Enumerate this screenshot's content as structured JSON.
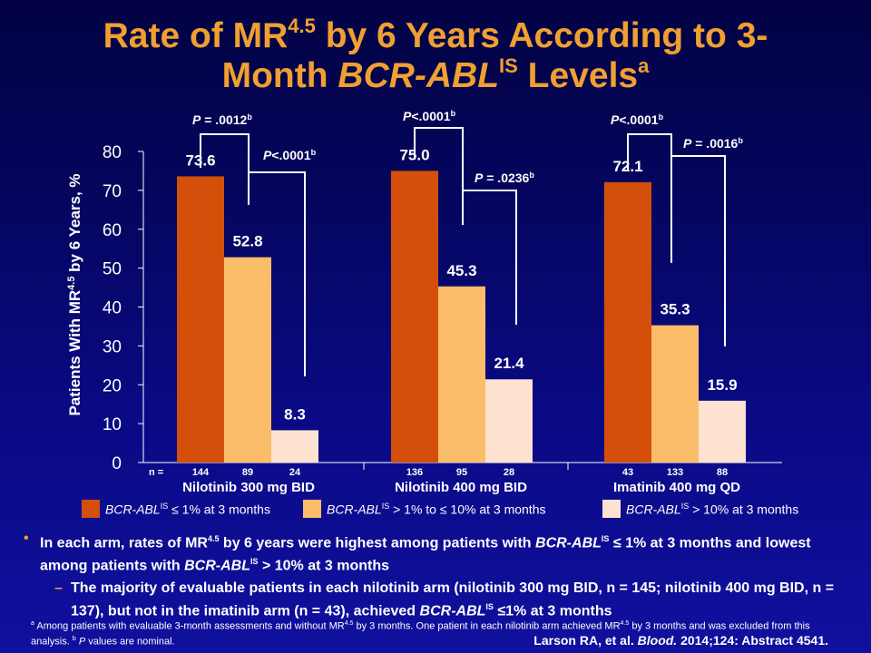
{
  "title": {
    "line1_a": "Rate of MR",
    "line1_sup": "4.5",
    "line1_b": " by 6 Years According to 3-",
    "line2_a": "Month ",
    "line2_italic": "BCR-ABL",
    "line2_sup": "IS",
    "line2_b": " Levels",
    "line2_sup2": "a"
  },
  "colors": {
    "accent": "#f0a030",
    "series_low": "#d4500a",
    "series_mid": "#fbbd6a",
    "series_high": "#fde2d2"
  },
  "chart_data": {
    "type": "bar",
    "ylabel": "Patients With MR4.5 by 6 Years, %",
    "ylabel_parts": {
      "pre": "Patients With MR",
      "sup": "4.5",
      "post": " by 6 Years, %"
    },
    "ylim": [
      0,
      80
    ],
    "yticks": [
      "0",
      "10",
      "20",
      "30",
      "40",
      "50",
      "60",
      "70",
      "80"
    ],
    "categories": [
      "Nilotinib 300 mg BID",
      "Nilotinib 400 mg BID",
      "Imatinib 400 mg QD"
    ],
    "series": [
      {
        "name": "BCR-ABL IS ≤ 1% at 3 months",
        "values": [
          73.6,
          75.0,
          72.1
        ],
        "labels": [
          "73.6",
          "75.0",
          "72.1"
        ],
        "n": [
          "144",
          "136",
          "43"
        ]
      },
      {
        "name": "BCR-ABL IS > 1% to ≤ 10% at 3 months",
        "values": [
          52.8,
          45.3,
          35.3
        ],
        "labels": [
          "52.8",
          "45.3",
          "35.3"
        ],
        "n": [
          "89",
          "95",
          "133"
        ]
      },
      {
        "name": "BCR-ABL IS > 10% at 3 months",
        "values": [
          8.3,
          21.4,
          15.9
        ],
        "labels": [
          "8.3",
          "21.4",
          "15.9"
        ],
        "n": [
          "24",
          "28",
          "88"
        ]
      }
    ],
    "n_label": "n =",
    "pvalues": [
      {
        "group": 0,
        "compare": "first",
        "text": "P = .0012",
        "sup": "b"
      },
      {
        "group": 0,
        "compare": "second",
        "text": "P<.0001",
        "sup": "b"
      },
      {
        "group": 1,
        "compare": "first",
        "text": "P<.0001",
        "sup": "b"
      },
      {
        "group": 1,
        "compare": "second",
        "text": "P = .0236",
        "sup": "b"
      },
      {
        "group": 2,
        "compare": "first",
        "text": "P<.0001",
        "sup": "b"
      },
      {
        "group": 2,
        "compare": "second",
        "text": "P = .0016",
        "sup": "b"
      }
    ]
  },
  "legend": [
    {
      "italic": "BCR-ABL",
      "sup": "IS",
      "rest": " ≤ 1% at 3 months"
    },
    {
      "italic": "BCR-ABL",
      "sup": "IS",
      "rest": " > 1% to ≤ 10% at 3 months"
    },
    {
      "italic": "BCR-ABL",
      "sup": "IS",
      "rest": " > 10% at 3 months"
    }
  ],
  "bullets": {
    "main": {
      "t1": "In each arm, rates of MR",
      "sup1": "4.5",
      "t2": " by 6 years were highest among patients with ",
      "i1": "BCR-ABL",
      "sup2": "IS",
      "t3": " ≤ 1% at 3 months and lowest among patients with ",
      "i2": "BCR-ABL",
      "sup3": "IS",
      "t4": " > 10% at 3 months"
    },
    "sub": {
      "t1": "The majority of evaluable patients in each nilotinib arm (nilotinib 300 mg BID, n = 145; nilotinib 400 mg BID, n = 137), but not in the imatinib arm (n = 43), achieved ",
      "i1": "BCR-ABL",
      "sup1": "IS",
      "t2": " ≤1% at 3 months"
    }
  },
  "footnote": {
    "sup_a": "a",
    "t1": " Among patients with evaluable 3-month assessments and without MR",
    "sup1": "4.5",
    "t2": " by 3 months. One patient in each nilotinib arm achieved MR",
    "sup2": "4.5",
    "t3": " by 3 months and was excluded from this analysis. ",
    "sup_b": "b",
    "i1": " P",
    "t4": " values are nominal."
  },
  "citation": {
    "t1": "Larson RA, et al. ",
    "i1": "Blood.",
    "t2": " 2014;124: Abstract 4541."
  }
}
